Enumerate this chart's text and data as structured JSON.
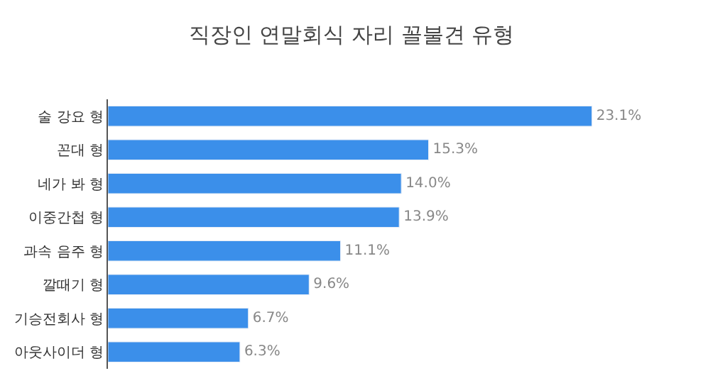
{
  "chart_data": {
    "type": "bar",
    "orientation": "horizontal",
    "title": "직장인 연말회식 자리 꼴불견 유형",
    "categories": [
      "술 강요 형",
      "꼰대 형",
      "네가 봐 형",
      "이중간첩 형",
      "과속 음주 형",
      "깔때기 형",
      "기승전회사 형",
      "아웃사이더 형"
    ],
    "values": [
      23.1,
      15.3,
      14.0,
      13.9,
      11.1,
      9.6,
      6.7,
      6.3
    ],
    "value_labels": [
      "23.1%",
      "15.3%",
      "14.0%",
      "13.9%",
      "11.1%",
      "9.6%",
      "6.7%",
      "6.3%"
    ],
    "color": "#3b8fea",
    "tick_labels": "y"
  }
}
